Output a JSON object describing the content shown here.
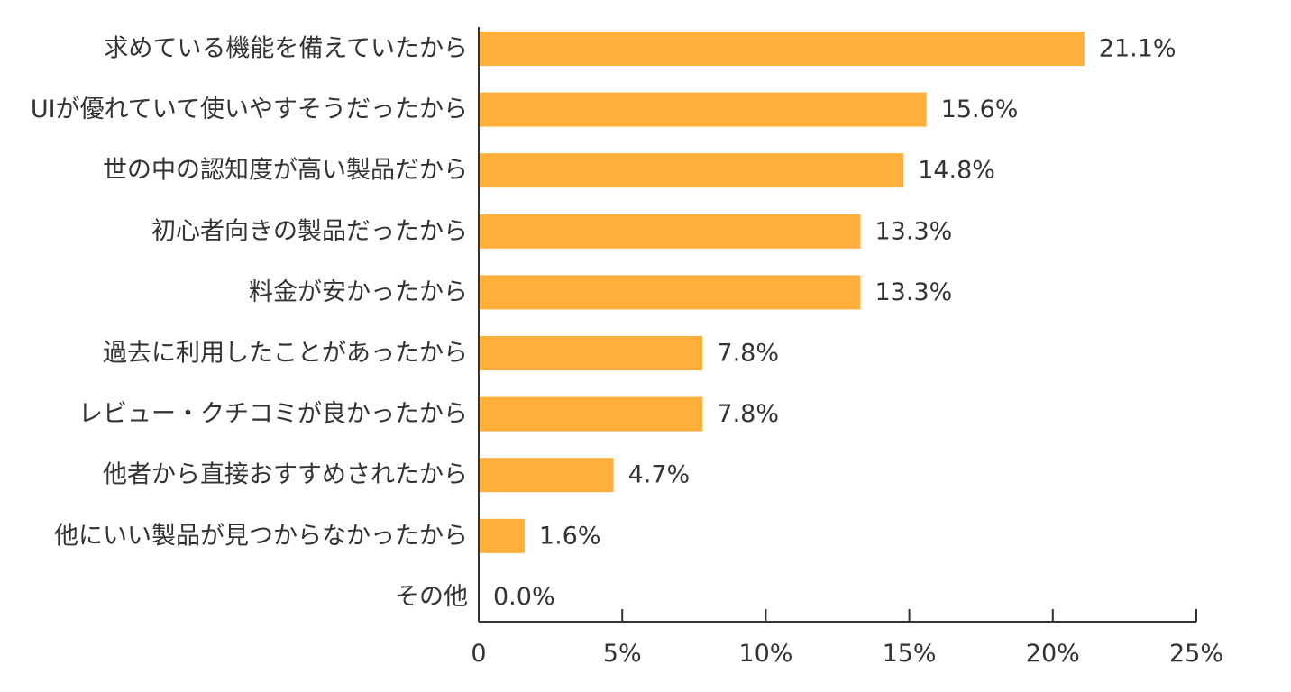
{
  "chart_data": {
    "type": "bar",
    "orientation": "horizontal",
    "categories": [
      "求めている機能を備えていたから",
      "UIが優れていて使いやすそうだったから",
      "世の中の認知度が高い製品だから",
      "初心者向きの製品だったから",
      "料金が安かったから",
      "過去に利用したことがあったから",
      "レビュー・クチコミが良かったから",
      "他者から直接おすすめされたから",
      "他にいい製品が見つからなかったから",
      "その他"
    ],
    "values": [
      21.1,
      15.6,
      14.8,
      13.3,
      13.3,
      7.8,
      7.8,
      4.7,
      1.6,
      0.0
    ],
    "value_labels": [
      "21.1%",
      "15.6%",
      "14.8%",
      "13.3%",
      "13.3%",
      "7.8%",
      "7.8%",
      "4.7%",
      "1.6%",
      "0.0%"
    ],
    "x_ticks": [
      0,
      5,
      10,
      15,
      20,
      25
    ],
    "x_tick_labels": [
      "0",
      "5%",
      "10%",
      "15%",
      "20%",
      "25%"
    ],
    "xlim": [
      0,
      25
    ],
    "grid": false,
    "bar_color": "#FFAF3A",
    "title": "",
    "xlabel": "",
    "ylabel": ""
  }
}
